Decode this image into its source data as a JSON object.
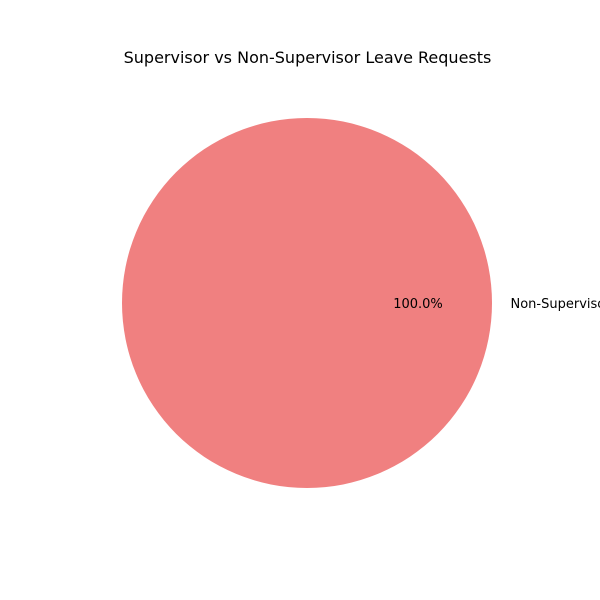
{
  "chart_data": {
    "type": "pie",
    "title": "Supervisor vs Non-Supervisor Leave Requests",
    "slices": [
      {
        "label": "Non-Supervisor",
        "value": 100.0,
        "percent_label": "100.0%",
        "color": "#f08080"
      }
    ],
    "start_angle_deg": 0,
    "legend": "none"
  }
}
